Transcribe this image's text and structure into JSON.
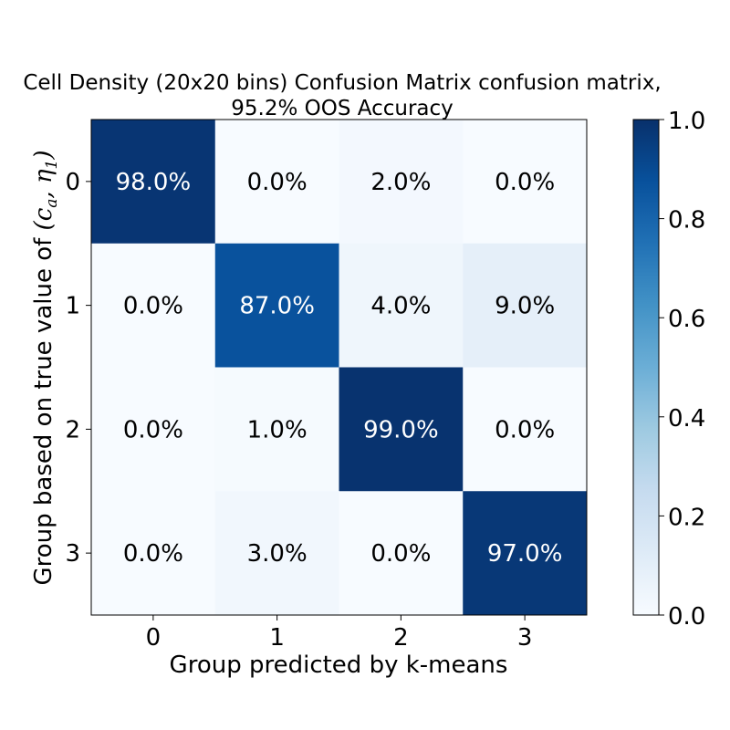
{
  "chart_data": {
    "type": "heatmap",
    "title_lines": [
      "Cell Density (20x20 bins) Confusion Matrix confusion matrix,",
      "95.2% OOS Accuracy"
    ],
    "xlabel": "Group predicted by k-means",
    "ylabel_prefix": "Group based on true value of ",
    "ylabel_math": "(c_a, η_1)",
    "x_categories": [
      "0",
      "1",
      "2",
      "3"
    ],
    "y_categories": [
      "0",
      "1",
      "2",
      "3"
    ],
    "values": [
      [
        0.98,
        0.0,
        0.02,
        0.0
      ],
      [
        0.0,
        0.87,
        0.04,
        0.09
      ],
      [
        0.0,
        0.01,
        0.99,
        0.0
      ],
      [
        0.0,
        0.03,
        0.0,
        0.97
      ]
    ],
    "cell_labels": [
      [
        "98.0%",
        "0.0%",
        "2.0%",
        "0.0%"
      ],
      [
        "0.0%",
        "87.0%",
        "4.0%",
        "9.0%"
      ],
      [
        "0.0%",
        "1.0%",
        "99.0%",
        "0.0%"
      ],
      [
        "0.0%",
        "3.0%",
        "0.0%",
        "97.0%"
      ]
    ],
    "colormap": "Blues",
    "color_range": [
      0,
      1
    ],
    "colorbar_ticks": [
      "0.0",
      "0.2",
      "0.4",
      "0.6",
      "0.8",
      "1.0"
    ],
    "colorbar_tick_values": [
      0.0,
      0.2,
      0.4,
      0.6,
      0.8,
      1.0
    ]
  }
}
